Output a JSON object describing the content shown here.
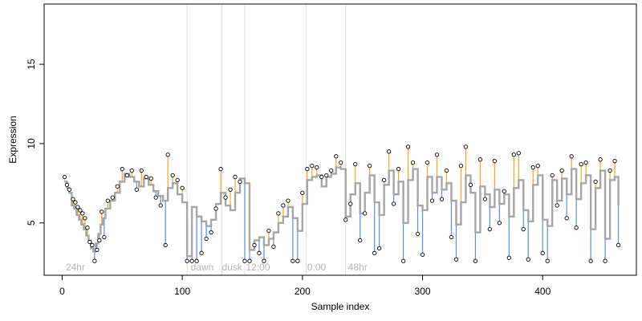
{
  "chart_data": {
    "type": "scatter",
    "xlabel": "Sample index",
    "ylabel": "Expression",
    "xlim": [
      -15,
      478
    ],
    "ylim": [
      1.7,
      18.8
    ],
    "xticks": [
      0,
      100,
      200,
      300,
      400
    ],
    "yticks": [
      5,
      10,
      15
    ],
    "grid": false,
    "phase_lines": [
      104,
      133,
      152,
      203,
      236
    ],
    "phase_labels": [
      {
        "x": 3,
        "text": "24hr"
      },
      {
        "x": 107,
        "text": "dawn"
      },
      {
        "x": 133,
        "text": "dusk"
      },
      {
        "x": 153,
        "text": "12:00"
      },
      {
        "x": 204,
        "text": "0:00"
      },
      {
        "x": 238,
        "text": "48hr"
      }
    ],
    "colors": {
      "fitted": "#a6a6a6",
      "above": "#f2a627",
      "below": "#5b8ee0",
      "point_fill": "#ffffff",
      "point_edge": "#000000",
      "phase_line": "#dddddd",
      "phase_label": "#b4b4b4"
    },
    "series": [
      {
        "name": "",
        "x": [
          2,
          4,
          6,
          8,
          10,
          12,
          14,
          16,
          18,
          20,
          22,
          24,
          26,
          28,
          30,
          32,
          34,
          36,
          40,
          44,
          48,
          52,
          56,
          60,
          64,
          68,
          72,
          76,
          80,
          84,
          88,
          92,
          96,
          100,
          104,
          108,
          112,
          116,
          120,
          124,
          128,
          132,
          136,
          140,
          144,
          148,
          152,
          156,
          160,
          164,
          168,
          172,
          176,
          180,
          184,
          188,
          192,
          196,
          200,
          204,
          208,
          212,
          216,
          220,
          224,
          228,
          232,
          236,
          240,
          244,
          248,
          252,
          256,
          260,
          264,
          268,
          272,
          276,
          280,
          284,
          288,
          292,
          296,
          300,
          304,
          308,
          312,
          316,
          320,
          324,
          328,
          332,
          336,
          340,
          344,
          348,
          352,
          356,
          360,
          364,
          368,
          372,
          376,
          380,
          384,
          388,
          392,
          396,
          400,
          404,
          408,
          412,
          416,
          420,
          424,
          428,
          432,
          436,
          440,
          444,
          448,
          452,
          456,
          460,
          463
        ],
        "y": [
          7.6,
          7.2,
          6.9,
          6.1,
          5.9,
          5.5,
          5.2,
          4.9,
          4.6,
          4.2,
          3.9,
          3.4,
          3.2,
          3.7,
          4.3,
          4.9,
          5.3,
          5.9,
          6.4,
          6.9,
          7.6,
          8.1,
          7.9,
          7.6,
          7.3,
          7.8,
          7.4,
          7.0,
          6.7,
          6.4,
          7.2,
          7.5,
          6.8,
          6.3,
          2.9,
          6.0,
          5.4,
          5.1,
          4.8,
          5.2,
          6.2,
          6.9,
          6.1,
          5.8,
          6.9,
          7.8,
          7.5,
          3.3,
          3.9,
          4.1,
          3.6,
          4.0,
          4.4,
          5.0,
          5.4,
          6.0,
          5.3,
          4.5,
          6.2,
          7.7,
          7.9,
          8.0,
          7.3,
          7.9,
          8.1,
          8.5,
          8.4,
          5.4,
          6.8,
          7.5,
          5.6,
          6.9,
          8.0,
          6.3,
          5.5,
          7.4,
          8.3,
          6.8,
          7.6,
          5.0,
          7.7,
          8.4,
          6.1,
          5.8,
          7.9,
          6.9,
          7.9,
          7.1,
          7.5,
          6.4,
          4.9,
          6.3,
          8.0,
          6.9,
          4.4,
          7.3,
          6.8,
          6.0,
          7.1,
          6.2,
          6.8,
          5.4,
          7.2,
          7.7,
          5.8,
          5.1,
          7.4,
          8.0,
          5.2,
          4.8,
          7.7,
          6.4,
          7.8,
          6.8,
          8.4,
          6.5,
          7.5,
          8.0,
          4.6,
          7.2,
          8.3,
          4.0,
          7.7,
          7.9,
          6.1
        ]
      },
      {
        "name": "",
        "x": [
          2,
          4,
          6,
          9,
          11,
          13,
          15,
          17,
          19,
          21,
          23,
          25,
          27,
          29,
          31,
          33,
          35,
          38,
          42,
          46,
          50,
          54,
          58,
          62,
          66,
          70,
          74,
          78,
          82,
          86,
          88,
          92,
          96,
          100,
          104,
          108,
          112,
          116,
          120,
          124,
          128,
          132,
          136,
          140,
          144,
          148,
          152,
          156,
          160,
          164,
          168,
          172,
          176,
          180,
          184,
          188,
          192,
          196,
          200,
          204,
          208,
          212,
          216,
          220,
          224,
          228,
          232,
          236,
          240,
          244,
          248,
          252,
          256,
          260,
          264,
          268,
          272,
          276,
          280,
          284,
          288,
          292,
          296,
          300,
          304,
          308,
          312,
          316,
          320,
          324,
          328,
          332,
          336,
          340,
          344,
          348,
          352,
          356,
          360,
          364,
          368,
          372,
          376,
          380,
          384,
          388,
          392,
          396,
          400,
          404,
          408,
          412,
          416,
          420,
          424,
          428,
          432,
          436,
          440,
          444,
          448,
          452,
          456,
          460,
          463
        ],
        "y": [
          7.9,
          7.4,
          7.1,
          6.5,
          6.3,
          6.0,
          5.8,
          5.6,
          5.3,
          4.7,
          3.8,
          3.6,
          2.6,
          3.3,
          3.9,
          5.7,
          4.1,
          6.4,
          6.6,
          7.3,
          8.4,
          8.0,
          8.3,
          7.1,
          8.3,
          7.9,
          7.8,
          6.6,
          6.1,
          3.6,
          9.3,
          8.0,
          7.7,
          7.2,
          2.6,
          2.6,
          2.6,
          3.1,
          4.0,
          4.4,
          5.9,
          8.4,
          6.6,
          7.1,
          7.9,
          7.6,
          2.6,
          2.6,
          3.6,
          3.1,
          2.6,
          4.5,
          3.5,
          5.6,
          6.1,
          6.4,
          2.6,
          2.6,
          6.9,
          8.4,
          8.6,
          8.5,
          7.9,
          8.0,
          8.3,
          9.2,
          8.8,
          5.2,
          6.2,
          8.7,
          3.9,
          5.6,
          8.6,
          3.1,
          3.4,
          7.7,
          9.5,
          6.2,
          8.4,
          2.6,
          9.8,
          8.8,
          4.3,
          3.0,
          8.8,
          6.4,
          9.3,
          6.5,
          8.3,
          4.1,
          2.7,
          8.6,
          9.8,
          7.4,
          2.6,
          9.0,
          6.5,
          4.6,
          8.9,
          5.0,
          7.0,
          2.8,
          9.3,
          9.4,
          4.6,
          2.7,
          8.5,
          8.6,
          3.1,
          2.6,
          8.0,
          6.1,
          8.3,
          5.3,
          9.2,
          4.7,
          8.7,
          8.8,
          2.6,
          7.6,
          9.0,
          2.6,
          8.3,
          8.9,
          3.6
        ]
      }
    ]
  }
}
